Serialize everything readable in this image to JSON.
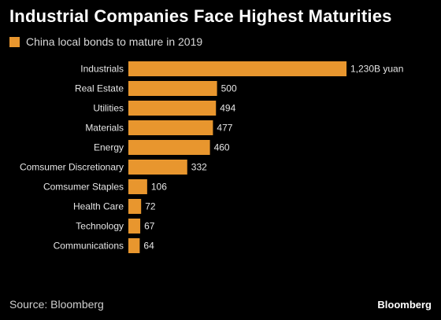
{
  "title": "Industrial Companies Face Highest Maturities",
  "legend": {
    "label": "China local bonds to mature in 2019"
  },
  "colors": {
    "bar": "#e8962e",
    "background": "#000000",
    "text": "#ffffff"
  },
  "chart_data": {
    "type": "bar",
    "orientation": "horizontal",
    "categories": [
      "Industrials",
      "Real Estate",
      "Utilities",
      "Materials",
      "Energy",
      "Comsumer Discretionary",
      "Comsumer Staples",
      "Health Care",
      "Technology",
      "Communications"
    ],
    "values": [
      1230,
      500,
      494,
      477,
      460,
      332,
      106,
      72,
      67,
      64
    ],
    "value_labels": [
      "1,230B yuan",
      "500",
      "494",
      "477",
      "460",
      "332",
      "106",
      "72",
      "67",
      "64"
    ],
    "series": [
      {
        "name": "China local bonds to mature in 2019",
        "values": [
          1230,
          500,
          494,
          477,
          460,
          332,
          106,
          72,
          67,
          64
        ]
      }
    ],
    "unit": "B yuan",
    "grid": false,
    "legend_position": "top-left"
  },
  "footer": {
    "source": "Source: Bloomberg",
    "brand": "Bloomberg"
  }
}
